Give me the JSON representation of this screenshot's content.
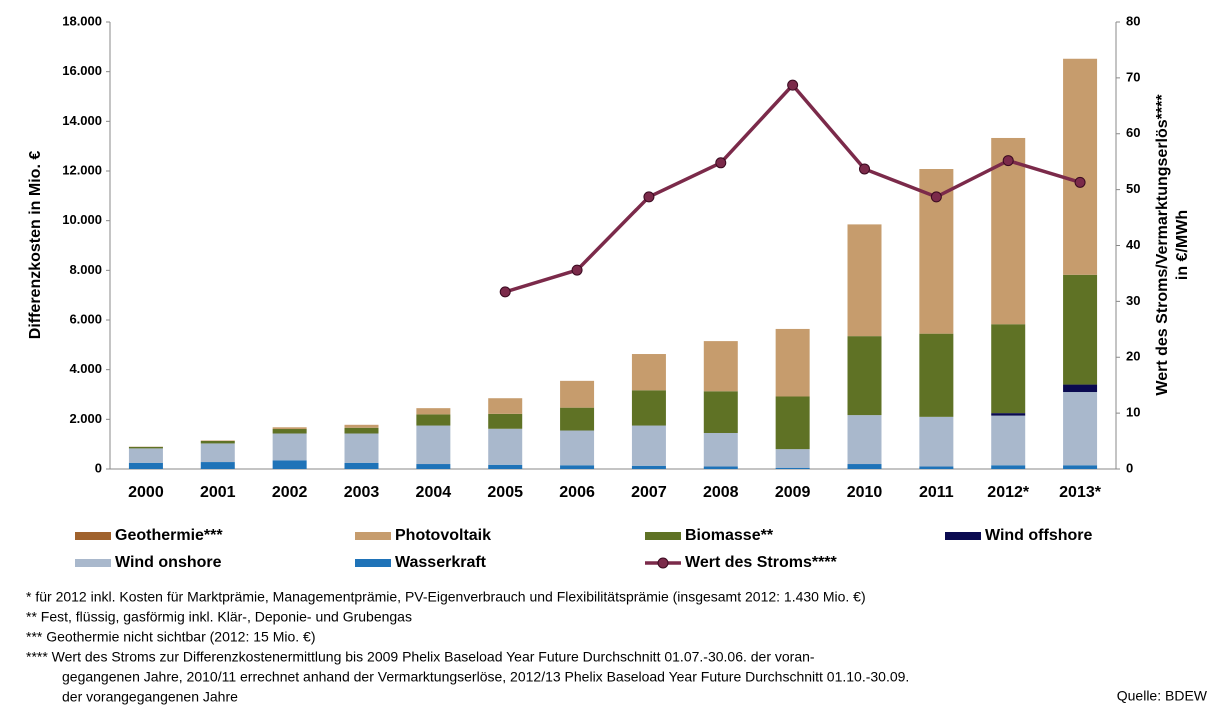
{
  "chart_data": {
    "type": "bar",
    "stacked": true,
    "ylabel": "Differenzkosten in Mio. €",
    "y2label": [
      "Wert des Stroms/Vermarktungserlös****",
      "in €/MWh"
    ],
    "categories": [
      "2000",
      "2001",
      "2002",
      "2003",
      "2004",
      "2005",
      "2006",
      "2007",
      "2008",
      "2009",
      "2010",
      "2011",
      "2012*",
      "2013*"
    ],
    "ylim": [
      0,
      18000
    ],
    "yticks": [
      0,
      {
        "value": 2000,
        "label": "2.000"
      },
      {
        "value": 4000,
        "label": "4.000"
      },
      {
        "value": 6000,
        "label": "6.000"
      },
      {
        "value": 8000,
        "label": "8.000"
      },
      {
        "value": 10000,
        "label": "10.000"
      },
      {
        "value": 12000,
        "label": "12.000"
      },
      {
        "value": 14000,
        "label": "14.000"
      },
      {
        "value": 16000,
        "label": "16.000"
      },
      {
        "value": 18000,
        "label": "18.000"
      }
    ],
    "y2lim": [
      0,
      80
    ],
    "y2ticks": [
      0,
      10,
      20,
      30,
      40,
      50,
      60,
      70,
      80
    ],
    "series": [
      {
        "name": "Geothermie***",
        "color": "#a0622d",
        "values": [
          0,
          0,
          0,
          0,
          0,
          0,
          0,
          0,
          0,
          0,
          0,
          0,
          0,
          0
        ]
      },
      {
        "name": "Photovoltaik",
        "color": "#c69c6d",
        "values": [
          10,
          20,
          70,
          120,
          250,
          630,
          1080,
          1460,
          2020,
          2720,
          4500,
          6630,
          7500,
          8700
        ]
      },
      {
        "name": "Biomasse**",
        "color": "#5f7225",
        "values": [
          60,
          100,
          180,
          230,
          450,
          600,
          920,
          1420,
          1680,
          2120,
          3180,
          3350,
          3580,
          4420
        ]
      },
      {
        "name": "Wind offshore",
        "color": "#0a0a50",
        "values": [
          0,
          0,
          0,
          0,
          0,
          0,
          0,
          0,
          0,
          0,
          0,
          0,
          100,
          300
        ]
      },
      {
        "name": "Wind onshore",
        "color": "#a9b8cc",
        "values": [
          580,
          750,
          1080,
          1180,
          1550,
          1450,
          1400,
          1620,
          1350,
          750,
          1970,
          2000,
          2000,
          2950
        ]
      },
      {
        "name": "Wasserkraft",
        "color": "#1f73b8",
        "values": [
          250,
          280,
          350,
          250,
          200,
          170,
          150,
          130,
          100,
          50,
          200,
          100,
          150,
          150
        ]
      },
      {
        "name": "Wert des Stroms****",
        "color": "#7b2a4a",
        "type": "line",
        "axis": "y2",
        "values": [
          null,
          null,
          null,
          null,
          null,
          31.7,
          35.6,
          48.7,
          54.8,
          68.7,
          53.7,
          48.7,
          55.2,
          51.3
        ]
      }
    ],
    "footnotes": [
      "* für 2012 inkl. Kosten für Marktprämie, Managementprämie, PV-Eigenverbrauch und Flexibilitätsprämie (insgesamt 2012: 1.430 Mio. €)",
      "** Fest, flüssig, gasförmig inkl. Klär-, Deponie- und Grubengas",
      "*** Geothermie nicht sichtbar (2012: 15 Mio. €)",
      "**** Wert des Stroms zur Differenzkostenermittlung bis 2009 Phelix Baseload Year Future Durchschnitt 01.07.-30.06. der voran-",
      "gegangenen Jahre, 2010/11 errechnet anhand der Vermarktungserlöse, 2012/13 Phelix Baseload Year Future Durchschnitt 01.10.-30.09.",
      "der vorangegangenen Jahre"
    ],
    "source": "Quelle: BDEW"
  }
}
